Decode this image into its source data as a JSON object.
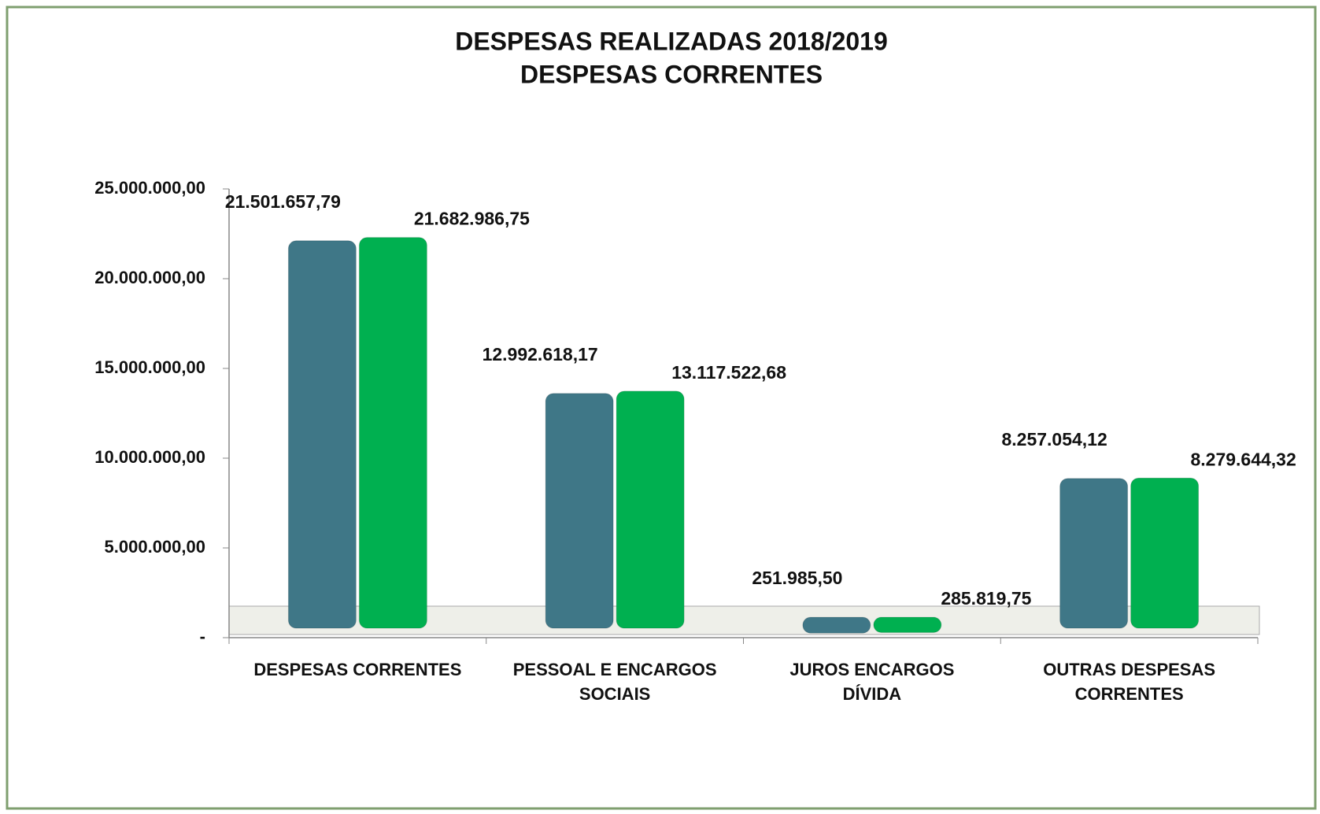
{
  "chart_data": {
    "type": "bar",
    "title": "DESPESAS REALIZADAS 2018/2019",
    "subtitle": "DESPESAS CORRENTES",
    "categories": [
      "DESPESAS CORRENTES",
      "PESSOAL E ENCARGOS SOCIAIS",
      "JUROS ENCARGOS DÍVIDA",
      "OUTRAS DESPESAS CORRENTES"
    ],
    "series": [
      {
        "color": "#3f7787",
        "values": [
          21501657.79,
          12992618.17,
          251985.5,
          8257054.12
        ],
        "value_labels": [
          "21.501.657,79",
          "12.992.618,17",
          "251.985,50",
          "8.257.054,12"
        ]
      },
      {
        "color": "#00b050",
        "values": [
          21682986.75,
          13117522.68,
          285819.75,
          8279644.32
        ],
        "value_labels": [
          "21.682.986,75",
          "13.117.522,68",
          "285.819,75",
          "8.279.644,32"
        ]
      }
    ],
    "ylim": [
      0,
      25000000
    ],
    "yticks": [
      {
        "value": 0,
        "label": "-"
      },
      {
        "value": 5000000,
        "label": "5.000.000,00"
      },
      {
        "value": 10000000,
        "label": "10.000.000,00"
      },
      {
        "value": 15000000,
        "label": "15.000.000,00"
      },
      {
        "value": 20000000,
        "label": "20.000.000,00"
      },
      {
        "value": 25000000,
        "label": "25.000.000,00"
      }
    ]
  }
}
